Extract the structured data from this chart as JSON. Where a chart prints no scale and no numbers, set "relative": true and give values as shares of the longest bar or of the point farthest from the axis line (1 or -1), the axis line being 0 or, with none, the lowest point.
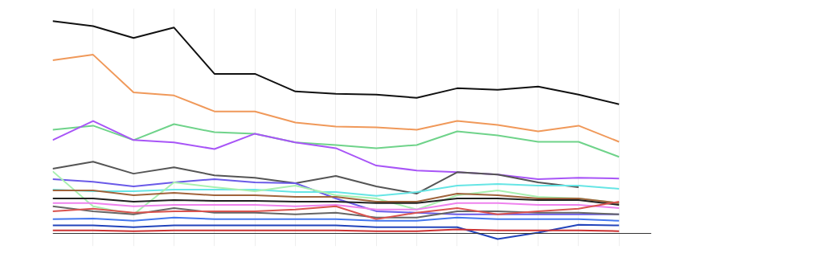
{
  "chart_data": {
    "type": "line",
    "relative": true,
    "grid": "x",
    "line_style": "solid",
    "marker": "none",
    "categories": [
      null,
      null,
      null,
      null,
      null,
      null,
      null,
      null,
      null,
      null,
      null,
      null,
      null,
      null,
      null
    ],
    "series": [
      {
        "color": "#111111",
        "values": [
          1.0,
          0.977,
          0.921,
          0.97,
          0.752,
          0.752,
          0.669,
          0.658,
          0.654,
          0.639,
          0.684,
          0.677,
          0.692,
          0.654,
          0.609
        ]
      },
      {
        "color": "#f0995a",
        "values": [
          0.816,
          0.842,
          0.665,
          0.65,
          0.575,
          0.575,
          0.523,
          0.504,
          0.5,
          0.489,
          0.53,
          0.511,
          0.481,
          0.508,
          0.432
        ]
      },
      {
        "color": "#6fd38a",
        "values": [
          0.489,
          0.508,
          0.44,
          0.515,
          0.477,
          0.47,
          0.429,
          0.417,
          0.402,
          0.417,
          0.481,
          0.462,
          0.432,
          0.432,
          0.361
        ]
      },
      {
        "color": "#a855f7",
        "values": [
          0.44,
          0.53,
          0.44,
          0.429,
          0.398,
          0.47,
          0.429,
          0.402,
          0.32,
          0.297,
          0.289,
          0.278,
          0.256,
          0.263,
          0.259
        ]
      },
      {
        "color": "#555555",
        "values": [
          0.305,
          0.338,
          0.282,
          0.312,
          0.274,
          0.263,
          0.237,
          0.271,
          0.222,
          0.188,
          0.289,
          0.278,
          0.241,
          0.218,
          null
        ]
      },
      {
        "color": "#6a5ae8",
        "values": [
          0.256,
          0.244,
          0.222,
          0.241,
          0.256,
          0.241,
          0.237,
          0.165,
          0.105,
          0.098,
          0.09,
          0.09,
          0.09,
          0.09,
          0.09
        ]
      },
      {
        "color": "#66e5e5",
        "values": [
          0.207,
          0.199,
          0.199,
          0.207,
          0.207,
          0.207,
          0.195,
          0.195,
          0.177,
          0.195,
          0.226,
          0.233,
          0.226,
          0.226,
          0.211
        ]
      },
      {
        "color": "#a8f0b0",
        "values": [
          0.293,
          0.128,
          0.09,
          0.241,
          0.218,
          0.199,
          0.226,
          0.18,
          0.165,
          0.113,
          0.18,
          0.203,
          0.173,
          0.165,
          0.143
        ]
      },
      {
        "color": "#a0643c",
        "values": [
          0.203,
          0.203,
          0.18,
          0.192,
          0.18,
          0.18,
          0.173,
          0.173,
          0.15,
          0.15,
          0.188,
          0.18,
          0.165,
          0.165,
          0.143
        ]
      },
      {
        "color": "#222222",
        "values": [
          0.165,
          0.165,
          0.15,
          0.158,
          0.154,
          0.154,
          0.15,
          0.15,
          0.143,
          0.143,
          0.165,
          0.165,
          0.158,
          0.158,
          0.135
        ]
      },
      {
        "color": "#666666",
        "values": [
          0.128,
          0.105,
          0.09,
          0.12,
          0.098,
          0.098,
          0.09,
          0.098,
          0.075,
          0.075,
          0.105,
          0.105,
          0.098,
          0.098,
          0.09
        ]
      },
      {
        "color": "#ee82ee",
        "values": [
          0.143,
          0.143,
          0.128,
          0.135,
          0.135,
          0.135,
          0.128,
          0.135,
          0.113,
          0.113,
          0.143,
          0.143,
          0.135,
          0.135,
          0.12
        ]
      },
      {
        "color": "#d9534f",
        "values": [
          0.105,
          0.117,
          0.098,
          0.105,
          0.105,
          0.105,
          0.113,
          0.128,
          0.068,
          0.098,
          0.12,
          0.09,
          0.105,
          0.117,
          0.15
        ]
      },
      {
        "color": "#4477ee",
        "values": [
          0.068,
          0.071,
          0.06,
          0.075,
          0.068,
          0.068,
          0.068,
          0.068,
          0.06,
          0.06,
          0.075,
          0.068,
          0.068,
          0.068,
          0.06
        ]
      },
      {
        "color": "#2244bb",
        "values": [
          0.038,
          0.038,
          0.03,
          0.038,
          0.038,
          0.038,
          0.038,
          0.038,
          0.03,
          0.03,
          0.03,
          -0.026,
          0.004,
          0.041,
          0.038
        ]
      },
      {
        "color": "#cc3333",
        "values": [
          0.015,
          0.015,
          0.011,
          0.015,
          0.015,
          0.015,
          0.015,
          0.015,
          0.011,
          0.011,
          0.019,
          0.015,
          0.015,
          0.015,
          0.011
        ]
      }
    ]
  }
}
